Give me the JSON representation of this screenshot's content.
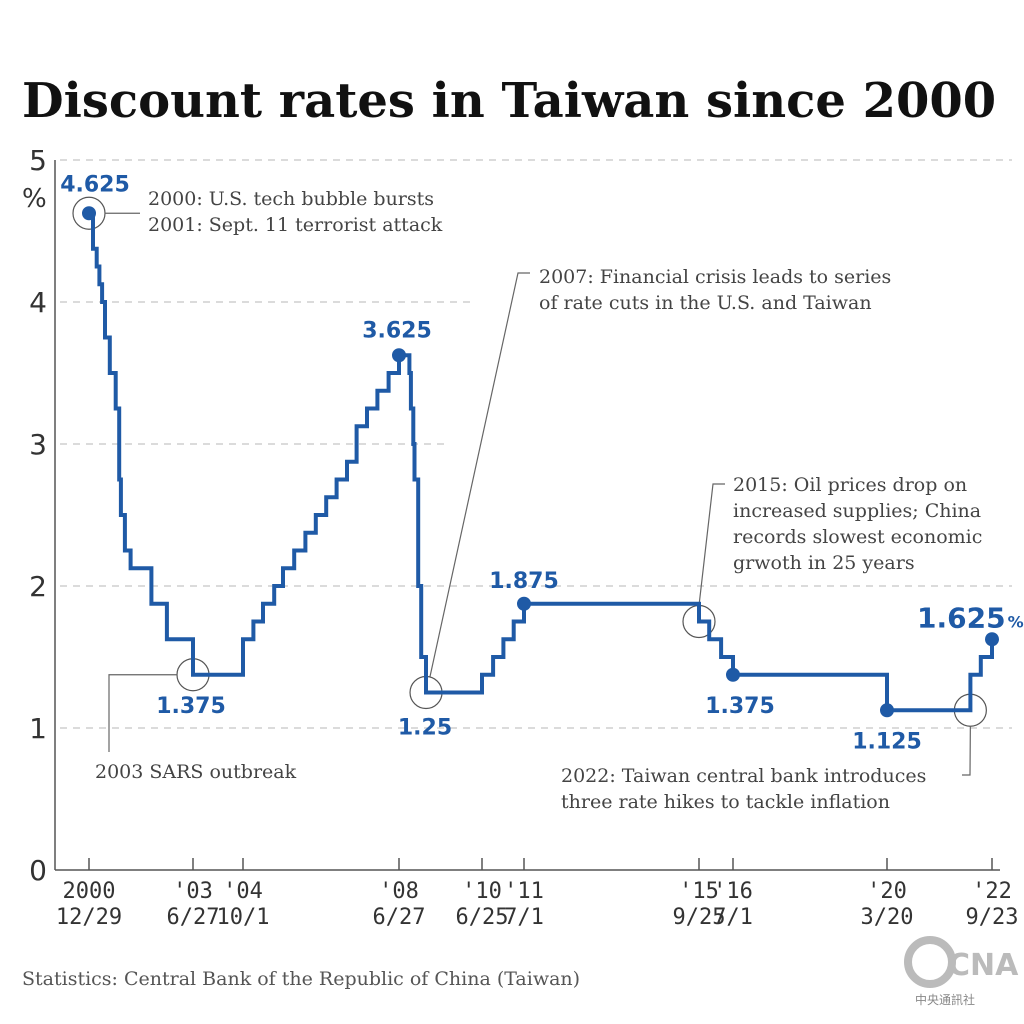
{
  "chart_data": {
    "type": "line",
    "title": "Discount rates in Taiwan since 2000",
    "ylabel": "%",
    "ylim": [
      0,
      5
    ],
    "yticks": [
      "0",
      "1",
      "2",
      "3",
      "4",
      "5"
    ],
    "grid": "dashed horizontal",
    "line_color": "#1f5aa6",
    "x_ticks": [
      {
        "top": "2000",
        "bottom": "12/29"
      },
      {
        "top": "'03",
        "bottom": "6/27"
      },
      {
        "top": "'04",
        "bottom": "10/1"
      },
      {
        "top": "'08",
        "bottom": "6/27"
      },
      {
        "top": "'10",
        "bottom": "6/25"
      },
      {
        "top": "'11",
        "bottom": "7/1"
      },
      {
        "top": "'15",
        "bottom": "9/25"
      },
      {
        "top": "'16",
        "bottom": "7/1"
      },
      {
        "top": "'20",
        "bottom": "3/20"
      },
      {
        "top": "'22",
        "bottom": "9/23"
      }
    ],
    "series": [
      {
        "x": [
          "2000-12-29",
          "2001-02-02",
          "2001-03-06",
          "2001-03-30",
          "2001-04-23",
          "2001-05-18",
          "2001-06-29",
          "2001-08-20",
          "2001-09-19",
          "2001-10-04",
          "2001-11-08",
          "2001-12-28",
          "2002-06-28",
          "2002-11-11",
          "2003-06-27",
          "2004-10-01",
          "2004-12-31",
          "2005-03-25",
          "2005-07-01",
          "2005-09-16",
          "2005-12-23",
          "2006-03-31",
          "2006-06-30",
          "2006-09-29",
          "2006-12-29",
          "2007-03-30",
          "2007-06-22",
          "2007-09-21",
          "2007-12-21",
          "2008-03-28",
          "2008-06-27",
          "2008-09-26",
          "2008-10-09",
          "2008-10-30",
          "2008-11-10",
          "2008-12-12",
          "2009-01-08",
          "2009-02-19",
          "2010-06-25",
          "2010-10-01",
          "2010-12-31",
          "2011-04-01",
          "2011-07-01",
          "2015-09-25",
          "2015-12-18",
          "2016-03-25",
          "2016-07-01",
          "2020-03-20",
          "2022-03-18",
          "2022-06-17",
          "2022-09-23"
        ],
        "values": [
          4.625,
          4.375,
          4.25,
          4.125,
          4.0,
          3.75,
          3.5,
          3.25,
          2.75,
          2.5,
          2.25,
          2.125,
          1.875,
          1.625,
          1.375,
          1.625,
          1.75,
          1.875,
          2.0,
          2.125,
          2.25,
          2.375,
          2.5,
          2.625,
          2.75,
          2.875,
          3.125,
          3.25,
          3.375,
          3.5,
          3.625,
          3.5,
          3.25,
          3.0,
          2.75,
          2.0,
          1.5,
          1.25,
          1.375,
          1.5,
          1.625,
          1.75,
          1.875,
          1.75,
          1.625,
          1.5,
          1.375,
          1.125,
          1.375,
          1.5,
          1.625
        ]
      }
    ],
    "value_labels": [
      {
        "x": "2000-12-29",
        "value": 4.625,
        "text": "4.625"
      },
      {
        "x": "2003-06-27",
        "value": 1.375,
        "text": "1.375"
      },
      {
        "x": "2008-06-27",
        "value": 3.625,
        "text": "3.625"
      },
      {
        "x": "2009-02-19",
        "value": 1.25,
        "text": "1.25"
      },
      {
        "x": "2011-07-01",
        "value": 1.875,
        "text": "1.875"
      },
      {
        "x": "2016-07-01",
        "value": 1.375,
        "text": "1.375"
      },
      {
        "x": "2020-03-20",
        "value": 1.125,
        "text": "1.125"
      },
      {
        "x": "2022-09-23",
        "value": 1.625,
        "text": "1.625",
        "suffix": "%"
      }
    ],
    "annotations": [
      {
        "x": "2000-12-29",
        "value": 4.625,
        "lines": [
          "2000: U.S. tech bubble bursts",
          "2001: Sept. 11 terrorist attack"
        ]
      },
      {
        "x": "2003-06-27",
        "value": 1.375,
        "lines": [
          "2003 SARS outbreak"
        ]
      },
      {
        "x": "2009-02-19",
        "value": 1.25,
        "lines": [
          "2007: Financial crisis leads to series",
          "of rate cuts in the U.S. and Taiwan"
        ]
      },
      {
        "x": "2015-09-25",
        "value": 1.75,
        "lines": [
          "2015: Oil prices drop on",
          "increased supplies; China",
          "records slowest economic",
          "grwoth in 25 years"
        ]
      },
      {
        "x": "2022-03-18",
        "value": 1.125,
        "lines": [
          "2022: Taiwan central bank introduces",
          "three rate hikes to tackle inflation"
        ]
      }
    ]
  },
  "source": "Statistics: Central Bank of the Republic of China (Taiwan)",
  "logo": {
    "text": "CNA",
    "sub": "中央通訊社"
  }
}
